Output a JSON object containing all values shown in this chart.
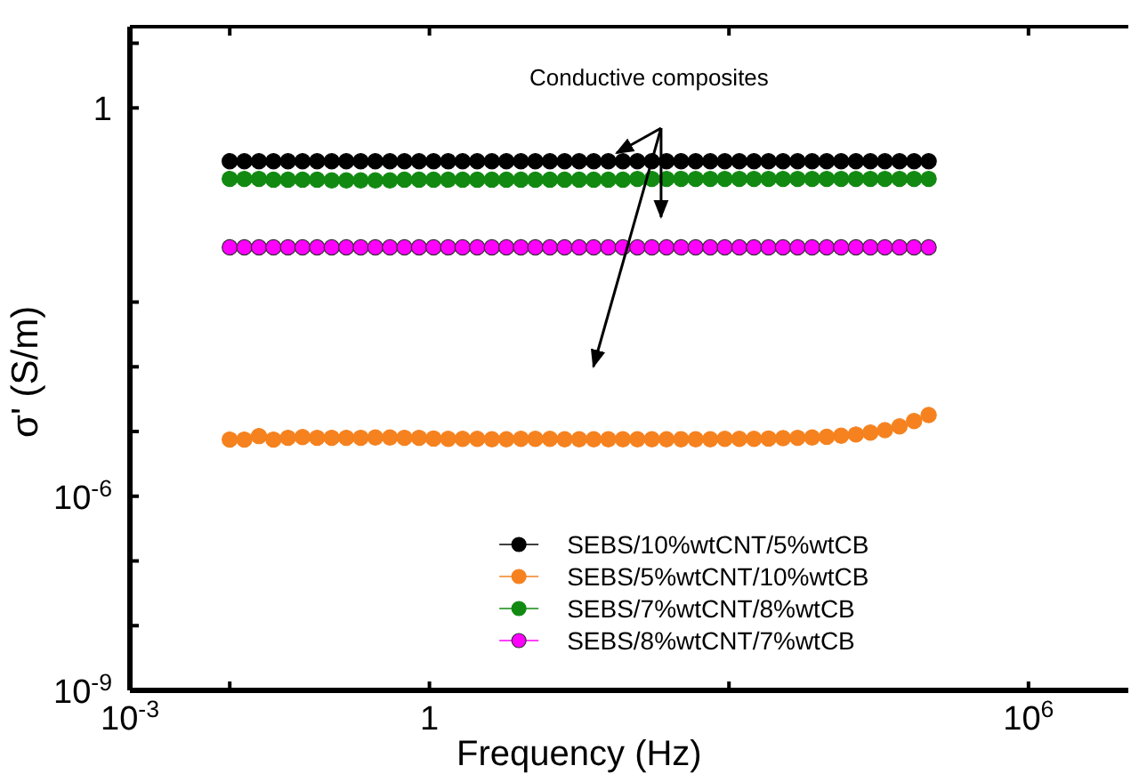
{
  "chart_data": {
    "type": "scatter",
    "xlabel": "Frequency (Hz)",
    "ylabel": "σ' (S/m)",
    "log": "xy",
    "marker": "circle",
    "legend": "bottom",
    "grid": false,
    "annotations": [
      "Conductive composites"
    ],
    "xlim": [
      0.001,
      10000000
    ],
    "xticks": [
      {
        "value": 0.001,
        "label": "10$^{-3}$"
      },
      {
        "value": 0.01,
        "label": null
      },
      1,
      {
        "value": 1000,
        "label": null
      },
      {
        "value": 1000000,
        "label": "10$^{6}$"
      }
    ],
    "ylim": [
      1e-09,
      18
    ],
    "yticks": [
      {
        "value": 1e-09,
        "label": "10$^{-9}$"
      },
      {
        "value": 1e-08,
        "label": null
      },
      {
        "value": 1e-07,
        "label": null
      },
      {
        "value": 1e-06,
        "label": "10$^{-6}$"
      },
      {
        "value": 1e-05,
        "label": null
      },
      {
        "value": 0.0001,
        "label": null
      },
      {
        "value": 0.001,
        "label": null
      },
      1,
      {
        "value": 10,
        "label": null
      }
    ],
    "x": [
      0.01,
      0.014,
      0.0196,
      0.0274,
      0.0383,
      0.0536,
      0.075,
      0.105,
      0.147,
      0.205,
      0.287,
      0.402,
      0.562,
      0.787,
      1.1,
      1.54,
      2.15,
      3.01,
      4.22,
      5.9,
      8.25,
      11.5,
      16.1,
      22.6,
      31.6,
      44.2,
      61.9,
      86.6,
      121,
      169,
      237,
      332,
      464,
      650,
      909,
      1270,
      1780,
      2490,
      3480,
      4870,
      6810,
      9530,
      13300,
      18700,
      26100,
      36500,
      51100,
      71500,
      100000
    ],
    "series": [
      {
        "name": "SEBS/10%wtCNT/5%wtCB",
        "color": "#000000",
        "values": [
          0.15,
          0.15,
          0.15,
          0.15,
          0.15,
          0.15,
          0.15,
          0.15,
          0.15,
          0.15,
          0.15,
          0.15,
          0.15,
          0.15,
          0.15,
          0.15,
          0.15,
          0.15,
          0.15,
          0.15,
          0.15,
          0.15,
          0.15,
          0.15,
          0.15,
          0.15,
          0.15,
          0.15,
          0.15,
          0.15,
          0.15,
          0.15,
          0.15,
          0.15,
          0.15,
          0.15,
          0.15,
          0.15,
          0.15,
          0.15,
          0.15,
          0.15,
          0.15,
          0.15,
          0.15,
          0.15,
          0.15,
          0.15,
          0.15
        ]
      },
      {
        "name": "SEBS/5%wtCNT/10%wtCB",
        "color": "#f5821f",
        "values": [
          7.5e-06,
          7.5e-06,
          8.5e-06,
          7.5e-06,
          8e-06,
          8.2e-06,
          8e-06,
          8e-06,
          8e-06,
          8e-06,
          8.1e-06,
          8.1e-06,
          8e-06,
          8e-06,
          7.8e-06,
          7.7e-06,
          7.7e-06,
          7.7e-06,
          7.6e-06,
          7.6e-06,
          7.7e-06,
          7.7e-06,
          7.7e-06,
          7.6e-06,
          7.6e-06,
          7.6e-06,
          7.6e-06,
          7.6e-06,
          7.6e-06,
          7.6e-06,
          7.6e-06,
          7.6e-06,
          7.6e-06,
          7.6e-06,
          7.7e-06,
          7.7e-06,
          7.7e-06,
          7.8e-06,
          7.9e-06,
          8e-06,
          8.1e-06,
          8.3e-06,
          8.6e-06,
          9e-06,
          9.6e-06,
          1.05e-05,
          1.2e-05,
          1.45e-05,
          1.8e-05
        ]
      },
      {
        "name": "SEBS/7%wtCNT/8%wtCB",
        "color": "#128a12",
        "values": [
          0.08,
          0.08,
          0.08,
          0.078,
          0.078,
          0.078,
          0.078,
          0.076,
          0.076,
          0.076,
          0.076,
          0.076,
          0.078,
          0.078,
          0.078,
          0.078,
          0.078,
          0.078,
          0.078,
          0.078,
          0.078,
          0.078,
          0.078,
          0.078,
          0.078,
          0.078,
          0.078,
          0.078,
          0.08,
          0.08,
          0.08,
          0.08,
          0.08,
          0.08,
          0.08,
          0.08,
          0.08,
          0.08,
          0.08,
          0.08,
          0.08,
          0.08,
          0.08,
          0.08,
          0.08,
          0.08,
          0.08,
          0.08,
          0.08
        ]
      },
      {
        "name": "SEBS/8%wtCNT/7%wtCB",
        "color": "#ff00ff",
        "values": [
          0.007,
          0.007,
          0.007,
          0.007,
          0.007,
          0.007,
          0.007,
          0.007,
          0.007,
          0.007,
          0.007,
          0.007,
          0.007,
          0.007,
          0.007,
          0.007,
          0.007,
          0.007,
          0.007,
          0.007,
          0.007,
          0.007,
          0.007,
          0.007,
          0.007,
          0.007,
          0.007,
          0.007,
          0.007,
          0.007,
          0.007,
          0.007,
          0.007,
          0.007,
          0.007,
          0.007,
          0.007,
          0.007,
          0.007,
          0.007,
          0.007,
          0.007,
          0.007,
          0.007,
          0.007,
          0.007,
          0.007,
          0.007,
          0.007
        ]
      }
    ]
  }
}
